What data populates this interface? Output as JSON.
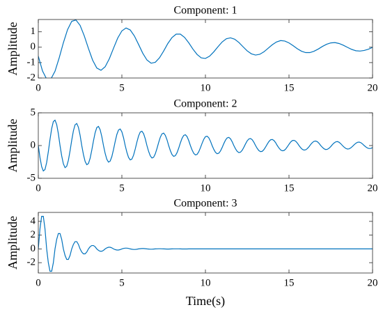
{
  "chart_data": [
    {
      "type": "line",
      "title": "Component: 1",
      "ylabel": "Amplitude",
      "color": "#0072bd",
      "xlim": [
        0,
        20
      ],
      "xticks": [
        0,
        5,
        10,
        15,
        20
      ],
      "ylim": [
        -2,
        1.8
      ],
      "yticks": [
        -2,
        -1,
        0,
        1
      ],
      "x": [
        0,
        0.25,
        0.5,
        0.75,
        1,
        1.25,
        1.5,
        1.75,
        2,
        2.25,
        2.5,
        2.75,
        3,
        3.25,
        3.5,
        3.75,
        4,
        4.25,
        4.5,
        4.75,
        5,
        5.25,
        5.5,
        5.75,
        6,
        6.25,
        6.5,
        6.75,
        7,
        7.25,
        7.5,
        7.75,
        8,
        8.25,
        8.5,
        8.75,
        9,
        9.25,
        9.5,
        9.75,
        10,
        10.25,
        10.5,
        10.75,
        11,
        11.25,
        11.5,
        11.75,
        12,
        12.25,
        12.5,
        12.75,
        13,
        13.25,
        13.5,
        13.75,
        14,
        14.25,
        14.5,
        14.75,
        15,
        15.25,
        15.5,
        15.75,
        16,
        16.25,
        16.5,
        16.75,
        17,
        17.25,
        17.5,
        17.75,
        18,
        18.25,
        18.5,
        18.75,
        19,
        19.25,
        19.5,
        19.75,
        20
      ],
      "values": [
        -0.58,
        -1.54,
        -2.07,
        -2.07,
        -1.56,
        -0.69,
        0.29,
        1.14,
        1.68,
        1.77,
        1.42,
        0.74,
        -0.08,
        -0.84,
        -1.35,
        -1.5,
        -1.27,
        -0.75,
        -0.07,
        0.59,
        1.06,
        1.25,
        1.12,
        0.73,
        0.18,
        -0.39,
        -0.83,
        -1.04,
        -0.98,
        -0.69,
        -0.25,
        0.24,
        0.63,
        0.85,
        0.85,
        0.64,
        0.29,
        -0.12,
        -0.47,
        -0.69,
        -0.73,
        -0.58,
        -0.3,
        0.03,
        0.34,
        0.55,
        0.61,
        0.52,
        0.31,
        0.03,
        -0.24,
        -0.43,
        -0.51,
        -0.46,
        -0.3,
        -0.07,
        0.16,
        0.34,
        0.43,
        0.4,
        0.28,
        0.1,
        -0.1,
        -0.26,
        -0.35,
        -0.35,
        -0.26,
        -0.12,
        0.05,
        0.19,
        0.28,
        0.3,
        0.24,
        0.13,
        -0.01,
        -0.14,
        -0.23,
        -0.25,
        -0.21,
        -0.13,
        -0.01
      ]
    },
    {
      "type": "line",
      "title": "Component: 2",
      "ylabel": "Amplitude",
      "color": "#0072bd",
      "xlim": [
        0,
        20
      ],
      "xticks": [
        0,
        5,
        10,
        15,
        20
      ],
      "ylim": [
        -5,
        5
      ],
      "yticks": [
        -5,
        0,
        5
      ],
      "x": [
        0,
        0.1,
        0.2,
        0.3,
        0.4,
        0.5,
        0.6,
        0.7,
        0.8,
        0.9,
        1,
        1.1,
        1.2,
        1.3,
        1.4,
        1.5,
        1.6,
        1.7,
        1.8,
        1.9,
        2,
        2.1,
        2.2,
        2.3,
        2.4,
        2.5,
        2.6,
        2.7,
        2.8,
        2.9,
        3,
        3.1,
        3.2,
        3.3,
        3.4,
        3.5,
        3.6,
        3.7,
        3.8,
        3.9,
        4,
        4.1,
        4.2,
        4.3,
        4.4,
        4.5,
        4.6,
        4.7,
        4.8,
        4.9,
        5,
        5.1,
        5.2,
        5.3,
        5.4,
        5.5,
        5.6,
        5.7,
        5.8,
        5.9,
        6,
        6.1,
        6.2,
        6.3,
        6.4,
        6.5,
        6.6,
        6.7,
        6.8,
        6.9,
        7,
        7.1,
        7.2,
        7.3,
        7.4,
        7.5,
        7.6,
        7.7,
        7.8,
        7.9,
        8,
        8.1,
        8.2,
        8.3,
        8.4,
        8.5,
        8.6,
        8.7,
        8.8,
        8.9,
        9,
        9.1,
        9.2,
        9.3,
        9.4,
        9.5,
        9.6,
        9.7,
        9.8,
        9.9,
        10,
        10.1,
        10.2,
        10.3,
        10.4,
        10.5,
        10.6,
        10.7,
        10.8,
        10.9,
        11,
        11.1,
        11.2,
        11.3,
        11.4,
        11.5,
        11.6,
        11.7,
        11.8,
        11.9,
        12,
        12.1,
        12.2,
        12.3,
        12.4,
        12.5,
        12.6,
        12.7,
        12.8,
        12.9,
        13,
        13.1,
        13.2,
        13.3,
        13.4,
        13.5,
        13.6,
        13.7,
        13.8,
        13.9,
        14,
        14.1,
        14.2,
        14.3,
        14.4,
        14.5,
        14.6,
        14.7,
        14.8,
        14.9,
        15,
        15.1,
        15.2,
        15.3,
        15.4,
        15.5,
        15.6,
        15.7,
        15.8,
        15.9,
        16,
        16.1,
        16.2,
        16.3,
        16.4,
        16.5,
        16.6,
        16.7,
        16.8,
        16.9,
        17,
        17.1,
        17.2,
        17.3,
        17.4,
        17.5,
        17.6,
        17.7,
        17.8,
        17.9,
        18,
        18.1,
        18.2,
        18.3,
        18.4,
        18.5,
        18.6,
        18.7,
        18.8,
        18.9,
        19,
        19.1,
        19.2,
        19.3,
        19.4,
        19.5,
        19.6,
        19.7,
        19.8,
        19.9,
        20
      ],
      "values": [
        0,
        -1.82,
        -3.22,
        -3.88,
        -3.66,
        -2.59,
        -0.93,
        0.93,
        2.59,
        3.66,
        3.88,
        3.22,
        1.82,
        0,
        -1.58,
        -2.79,
        -3.37,
        -3.17,
        -2.25,
        -0.81,
        0.81,
        2.25,
        3.17,
        3.37,
        2.79,
        1.58,
        0,
        -1.37,
        -2.42,
        -2.92,
        -2.75,
        -1.95,
        -0.7,
        0.7,
        1.95,
        2.75,
        2.92,
        2.42,
        1.37,
        0,
        -1.19,
        -2.1,
        -2.53,
        -2.38,
        -1.69,
        -0.61,
        0.61,
        1.69,
        2.38,
        2.53,
        2.1,
        1.19,
        0,
        -1.03,
        -1.82,
        -2.19,
        -2.07,
        -1.47,
        -0.53,
        0.53,
        1.47,
        2.07,
        2.19,
        1.82,
        1.03,
        0,
        -0.89,
        -1.57,
        -1.9,
        -1.79,
        -1.27,
        -0.46,
        0.46,
        1.27,
        1.79,
        1.9,
        1.57,
        0.89,
        0,
        -0.77,
        -1.37,
        -1.65,
        -1.55,
        -1.1,
        -0.4,
        0.4,
        1.1,
        1.55,
        1.65,
        1.37,
        0.77,
        0,
        -0.67,
        -1.19,
        -1.43,
        -1.35,
        -0.95,
        -0.34,
        0.34,
        0.95,
        1.35,
        1.43,
        1.19,
        0.67,
        0,
        -0.58,
        -1.03,
        -1.24,
        -1.17,
        -0.83,
        -0.3,
        0.3,
        0.83,
        1.17,
        1.24,
        1.03,
        0.58,
        0,
        -0.5,
        -0.89,
        -1.07,
        -1.01,
        -0.72,
        -0.26,
        0.26,
        0.72,
        1.01,
        1.07,
        0.89,
        0.5,
        0,
        -0.44,
        -0.77,
        -0.93,
        -0.88,
        -0.62,
        -0.22,
        0.22,
        0.62,
        0.88,
        0.93,
        0.77,
        0.44,
        0,
        -0.38,
        -0.67,
        -0.8,
        -0.76,
        -0.54,
        -0.19,
        0.19,
        0.54,
        0.76,
        0.8,
        0.67,
        0.38,
        0,
        -0.33,
        -0.58,
        -0.69,
        -0.65,
        -0.46,
        -0.17,
        0.17,
        0.46,
        0.65,
        0.69,
        0.58,
        0.33,
        0,
        -0.28,
        -0.5,
        -0.61,
        -0.57,
        -0.4,
        -0.15,
        0.15,
        0.4,
        0.57,
        0.61,
        0.5,
        0.28,
        0,
        -0.25,
        -0.44,
        -0.53,
        -0.5,
        -0.35,
        -0.13,
        0.13,
        0.35,
        0.5,
        0.53,
        0.44,
        0.25,
        0,
        -0.21,
        -0.38,
        -0.46,
        -0.43,
        -0.31
      ]
    },
    {
      "type": "line",
      "title": "Component: 3",
      "ylabel": "Amplitude",
      "xlabel": "Time(s)",
      "color": "#0072bd",
      "xlim": [
        0,
        20
      ],
      "xticks": [
        0,
        5,
        10,
        15,
        20
      ],
      "ylim": [
        -3.5,
        5.3
      ],
      "yticks": [
        -2,
        0,
        2,
        4
      ],
      "x": [
        0,
        0.1,
        0.2,
        0.3,
        0.4,
        0.5,
        0.6,
        0.7,
        0.8,
        0.9,
        1,
        1.1,
        1.2,
        1.3,
        1.4,
        1.5,
        1.6,
        1.7,
        1.8,
        1.9,
        2,
        2.1,
        2.2,
        2.3,
        2.4,
        2.5,
        2.6,
        2.7,
        2.8,
        2.9,
        3,
        3.1,
        3.2,
        3.3,
        3.4,
        3.5,
        3.6,
        3.7,
        3.8,
        3.9,
        4,
        4.1,
        4.2,
        4.3,
        4.4,
        4.5,
        4.6,
        4.7,
        4.8,
        4.9,
        5,
        5.1,
        5.2,
        5.3,
        5.4,
        5.5,
        5.6,
        5.7,
        5.8,
        5.9,
        6,
        6.1,
        6.2,
        6.3,
        6.4,
        6.5,
        6.6,
        6.7,
        6.8,
        6.9,
        7,
        7.1,
        7.2,
        7.3,
        7.4,
        7.5,
        7.6,
        7.7,
        7.8,
        7.9,
        8,
        8.1,
        8.2,
        8.3,
        8.4,
        8.5,
        8.6,
        8.7,
        8.8,
        8.9,
        9,
        10,
        11,
        12,
        13,
        14,
        15,
        16,
        17,
        18,
        19,
        20
      ],
      "values": [
        0,
        2.92,
        4.73,
        4.73,
        2.92,
        0,
        -2.01,
        -3.25,
        -3.25,
        -2.01,
        0,
        1.38,
        2.23,
        2.23,
        1.38,
        0,
        -0.95,
        -1.53,
        -1.53,
        -0.95,
        0,
        0.65,
        1.06,
        1.06,
        0.65,
        0,
        -0.45,
        -0.72,
        -0.72,
        -0.45,
        0,
        0.31,
        0.49,
        0.49,
        0.31,
        0,
        -0.21,
        -0.34,
        -0.34,
        -0.21,
        0,
        0.15,
        0.24,
        0.24,
        0.15,
        0,
        -0.1,
        -0.16,
        -0.16,
        -0.1,
        0,
        0.07,
        0.11,
        0.11,
        0.07,
        0,
        -0.05,
        -0.08,
        -0.08,
        -0.05,
        0,
        0.03,
        0.05,
        0.05,
        0.03,
        0,
        -0.02,
        -0.04,
        -0.04,
        -0.02,
        0,
        0.01,
        0.02,
        0.02,
        0.01,
        0,
        -0.01,
        -0.02,
        -0.02,
        -0.01,
        0,
        0.01,
        0.01,
        0.01,
        0.01,
        0,
        -0.01,
        -0.01,
        -0.01,
        -0.01,
        0,
        0,
        0,
        0,
        0,
        0,
        0,
        0,
        0,
        0,
        0,
        0
      ]
    }
  ]
}
